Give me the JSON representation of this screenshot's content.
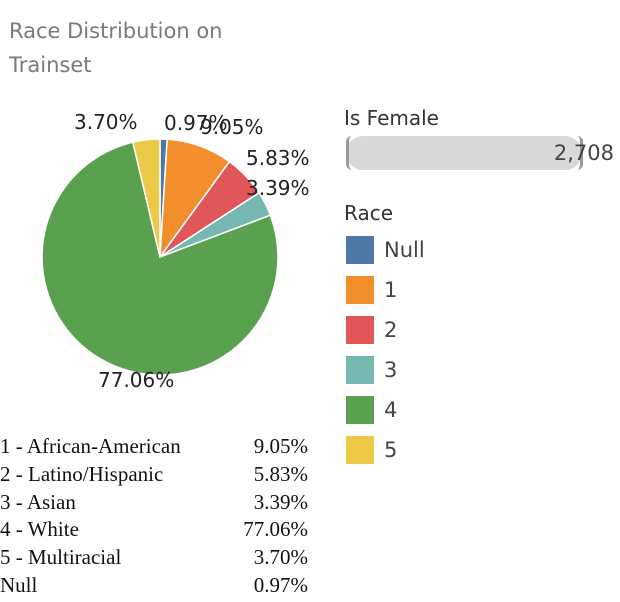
{
  "title": "Race Distribution on Trainset",
  "chart_data": {
    "type": "pie",
    "slices": [
      {
        "label": "Null",
        "value": 0.97,
        "value_label": "0.97%",
        "color": "#4e79a7"
      },
      {
        "label": "1",
        "value": 9.05,
        "value_label": "9.05%",
        "color": "#f28e2b"
      },
      {
        "label": "2",
        "value": 5.83,
        "value_label": "5.83%",
        "color": "#e15759"
      },
      {
        "label": "3",
        "value": 3.39,
        "value_label": "3.39%",
        "color": "#76b7b2"
      },
      {
        "label": "4",
        "value": 77.06,
        "value_label": "77.06%",
        "color": "#59a14f"
      },
      {
        "label": "5",
        "value": 3.7,
        "value_label": "3.70%",
        "color": "#edc948"
      }
    ]
  },
  "filter": {
    "title": "Is Female",
    "value": "2,708"
  },
  "legend": {
    "title": "Race",
    "items": [
      {
        "label": "Null",
        "color": "#4e79a7"
      },
      {
        "label": "1",
        "color": "#f28e2b"
      },
      {
        "label": "2",
        "color": "#e15759"
      },
      {
        "label": "3",
        "color": "#76b7b2"
      },
      {
        "label": "4",
        "color": "#59a14f"
      },
      {
        "label": "5",
        "color": "#edc948"
      }
    ]
  },
  "key_table": [
    {
      "label": "1 - African-American",
      "value": "9.05%"
    },
    {
      "label": "2 - Latino/Hispanic",
      "value": "5.83%"
    },
    {
      "label": "3 - Asian",
      "value": "3.39%"
    },
    {
      "label": "4 - White",
      "value": "77.06%"
    },
    {
      "label": "5 - Multiracial",
      "value": "3.70%"
    },
    {
      "label": "Null",
      "value": "0.97%"
    }
  ]
}
